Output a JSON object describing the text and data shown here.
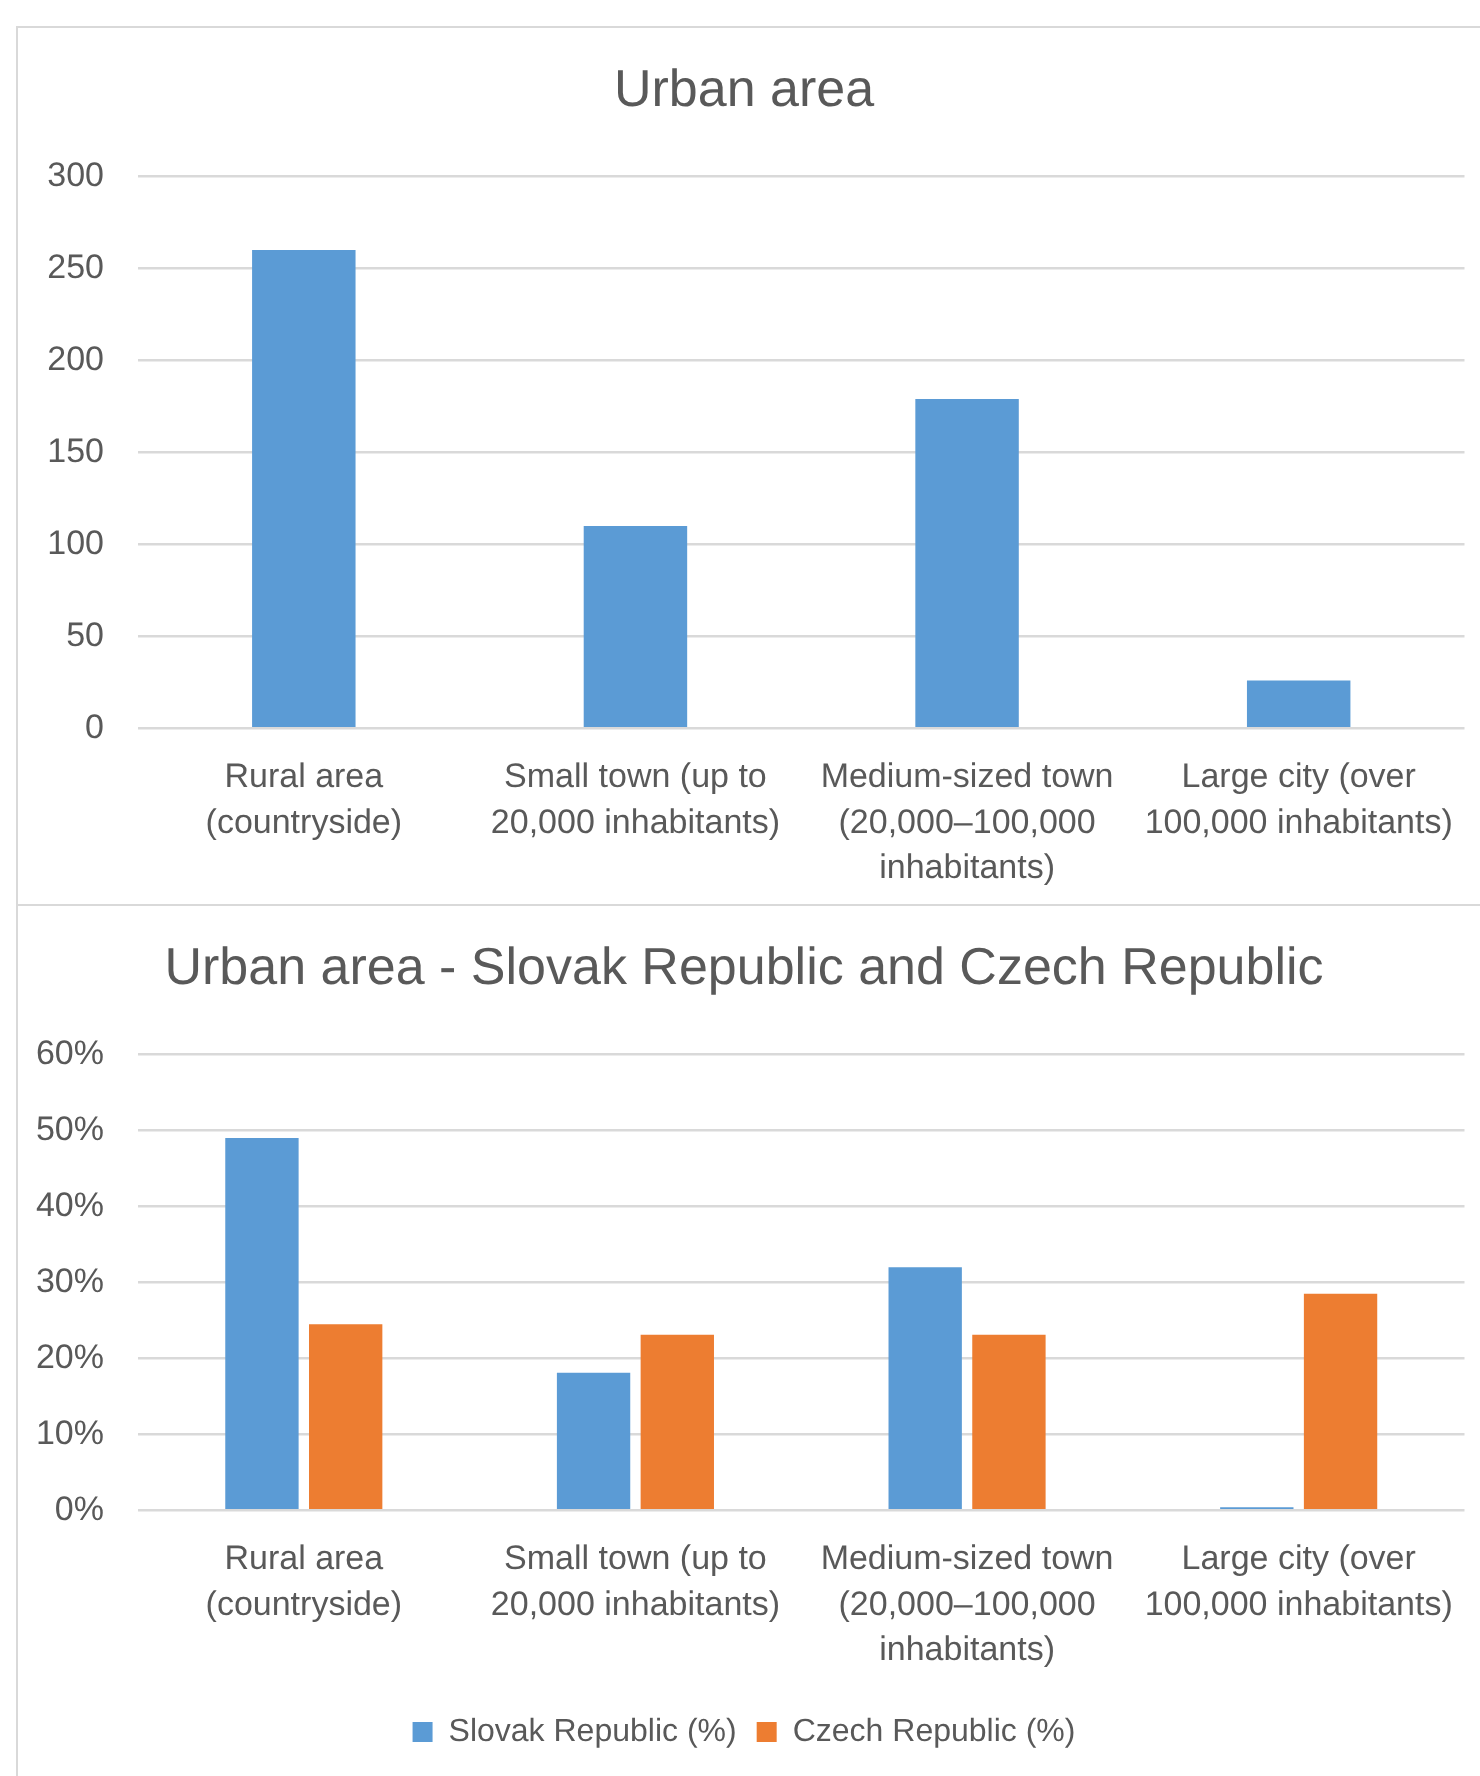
{
  "chart_data": [
    {
      "type": "bar",
      "title": "Urban area",
      "categories": [
        "Rural area (countryside)",
        "Small town (up to 20,000 inhabitants)",
        "Medium-sized town (20,000–100,000 inhabitants)",
        "Large city (over 100,000 inhabitants)"
      ],
      "values": [
        260,
        110,
        179,
        26
      ],
      "color": "#5b9bd5",
      "ylim": [
        0,
        300
      ],
      "yticks": [
        0,
        50,
        100,
        150,
        200,
        250,
        300
      ],
      "grid": "y",
      "legend": false
    },
    {
      "type": "bar",
      "title": "Urban area - Slovak Republic and Czech Republic",
      "categories": [
        "Rural area (countryside)",
        "Small town (up to 20,000 inhabitants)",
        "Medium-sized town (20,000–100,000 inhabitants)",
        "Large city (over 100,000 inhabitants)"
      ],
      "series": [
        {
          "name": "Slovak Republic (%)",
          "color": "#5b9bd5",
          "values": [
            49,
            18.1,
            32,
            0.4
          ]
        },
        {
          "name": "Czech Republic (%)",
          "color": "#ed7d31",
          "values": [
            24.5,
            23.1,
            23.1,
            28.5
          ]
        }
      ],
      "ylim": [
        0,
        60
      ],
      "yticks": [
        {
          "value": 0,
          "label": "0%"
        },
        {
          "value": 10,
          "label": "10%"
        },
        {
          "value": 20,
          "label": "20%"
        },
        {
          "value": 30,
          "label": "30%"
        },
        {
          "value": 40,
          "label": "40%"
        },
        {
          "value": 50,
          "label": "50%"
        },
        {
          "value": 60,
          "label": "60%"
        }
      ],
      "grid": "y",
      "legend": "bottom"
    }
  ]
}
